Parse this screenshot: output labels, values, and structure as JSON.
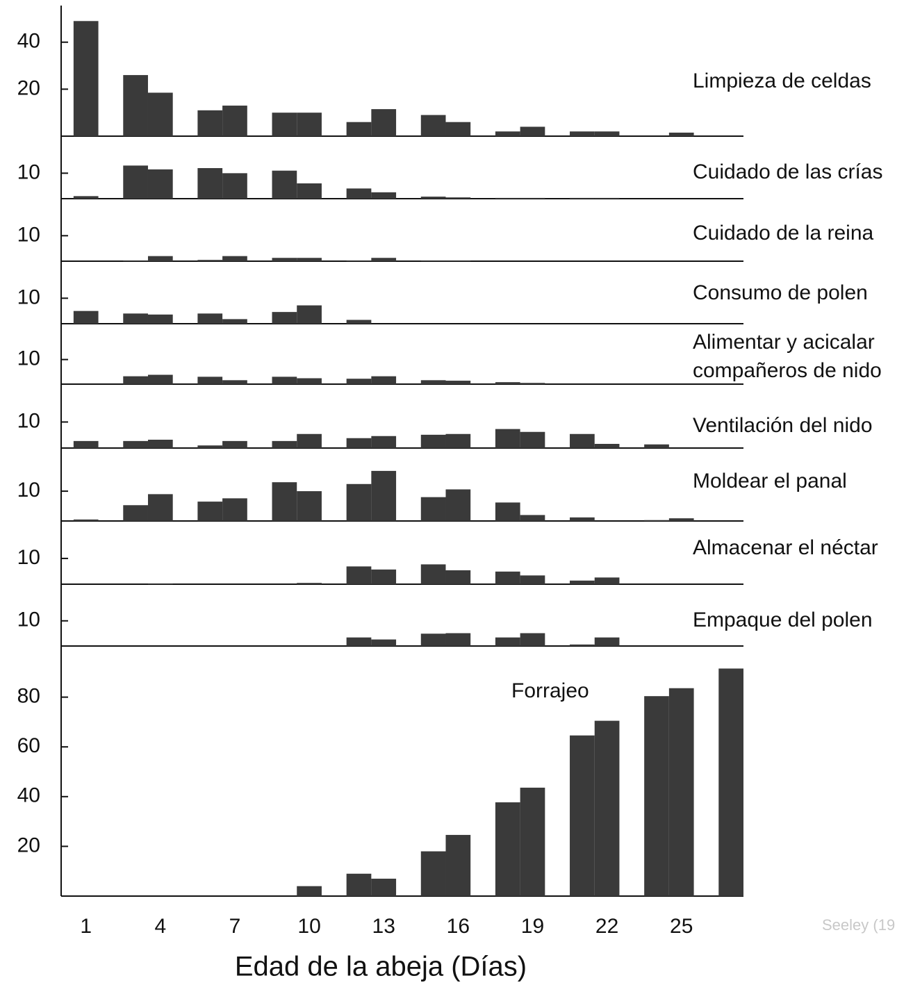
{
  "chart_data": [
    {
      "type": "bar",
      "title": "Limpieza de celdas",
      "x": [
        1,
        3,
        4,
        6,
        7,
        9,
        10,
        12,
        13,
        15,
        16,
        18,
        19,
        21,
        22,
        24,
        25,
        27
      ],
      "values": [
        49,
        26,
        18.5,
        11,
        13,
        10,
        10,
        6,
        11.5,
        9,
        6,
        2,
        4,
        2,
        2,
        0,
        1.5,
        0
      ],
      "ylim": [
        0,
        55
      ],
      "yticks": [
        20,
        40
      ],
      "color": "#3a3a3a"
    },
    {
      "type": "bar",
      "title": "Cuidado de las crías",
      "x": [
        1,
        3,
        4,
        6,
        7,
        9,
        10,
        12,
        13,
        15,
        16,
        18,
        19,
        21,
        22,
        24,
        25,
        27
      ],
      "values": [
        1,
        13,
        11.5,
        12,
        10,
        11,
        6,
        4,
        2.5,
        0.8,
        0.5,
        0.3,
        0.3,
        0.3,
        0.3,
        0,
        0,
        0
      ],
      "ylim": [
        0,
        24
      ],
      "yticks": [
        10
      ],
      "color": "#3a3a3a"
    },
    {
      "type": "bar",
      "title": "Cuidado de la reina",
      "x": [
        1,
        3,
        4,
        6,
        7,
        9,
        10,
        12,
        13,
        15,
        16,
        18,
        19,
        21,
        22,
        24,
        25,
        27
      ],
      "values": [
        0,
        0.3,
        2,
        0.5,
        2,
        1.3,
        1.3,
        0.3,
        1.3,
        0.3,
        0.3,
        0,
        0,
        0,
        0,
        0,
        0,
        0
      ],
      "ylim": [
        0,
        24
      ],
      "yticks": [
        10
      ],
      "color": "#3a3a3a"
    },
    {
      "type": "bar",
      "title": "Consumo de polen",
      "x": [
        1,
        3,
        4,
        6,
        7,
        9,
        10,
        12,
        13,
        15,
        16,
        18,
        19,
        21,
        22,
        24,
        25,
        27
      ],
      "values": [
        5,
        4,
        3.6,
        4,
        1.8,
        4.6,
        7.2,
        1.5,
        0,
        0,
        0,
        0,
        0,
        0,
        0,
        0,
        0,
        0
      ],
      "ylim": [
        0,
        24
      ],
      "yticks": [
        10
      ],
      "color": "#3a3a3a"
    },
    {
      "type": "bar",
      "title": [
        "Alimentar y acicalar",
        "compañeros de nido"
      ],
      "x": [
        1,
        3,
        4,
        6,
        7,
        9,
        10,
        12,
        13,
        15,
        16,
        18,
        19,
        21,
        22,
        24,
        25,
        27
      ],
      "values": [
        0,
        3.2,
        3.8,
        3,
        1.6,
        3,
        2.4,
        2.2,
        3.2,
        1.6,
        1.4,
        0.8,
        0.5,
        0,
        0,
        0,
        0,
        0
      ],
      "ylim": [
        0,
        24
      ],
      "yticks": [
        10
      ],
      "color": "#3a3a3a"
    },
    {
      "type": "bar",
      "title": "Ventilación del nido",
      "x": [
        1,
        3,
        4,
        6,
        7,
        9,
        10,
        12,
        13,
        15,
        16,
        18,
        19,
        21,
        22,
        24,
        25,
        27
      ],
      "values": [
        2.7,
        2.7,
        3.2,
        1,
        2.7,
        2.7,
        5.4,
        3.8,
        4.6,
        5.1,
        5.4,
        7.3,
        6.2,
        5.4,
        1.6,
        1.4,
        0,
        0
      ],
      "ylim": [
        0,
        24
      ],
      "yticks": [
        10
      ],
      "color": "#3a3a3a"
    },
    {
      "type": "bar",
      "title": "Moldear el panal",
      "x": [
        1,
        3,
        4,
        6,
        7,
        9,
        10,
        12,
        13,
        15,
        16,
        18,
        19,
        21,
        22,
        24,
        25,
        27
      ],
      "values": [
        0.5,
        5.3,
        9,
        6.5,
        7.6,
        13,
        10,
        12.4,
        16.8,
        8,
        10.6,
        6.2,
        2,
        1.2,
        0,
        0.3,
        0.9,
        0
      ],
      "ylim": [
        0,
        24
      ],
      "yticks": [
        10
      ],
      "color": "#3a3a3a"
    },
    {
      "type": "bar",
      "title": "Almacenar el néctar",
      "x": [
        1,
        3,
        4,
        6,
        7,
        9,
        10,
        12,
        13,
        15,
        16,
        18,
        19,
        21,
        22,
        24,
        25,
        27
      ],
      "values": [
        0,
        0,
        0.3,
        0,
        0,
        0,
        0.5,
        6.9,
        5.7,
        7.7,
        5.4,
        4.9,
        3.4,
        1.4,
        2.6,
        0,
        0,
        0
      ],
      "ylim": [
        0,
        24
      ],
      "yticks": [
        10
      ],
      "color": "#3a3a3a"
    },
    {
      "type": "bar",
      "title": "Empaque del polen",
      "x": [
        1,
        3,
        4,
        6,
        7,
        9,
        10,
        12,
        13,
        15,
        16,
        18,
        19,
        21,
        22,
        24,
        25,
        27
      ],
      "values": [
        0,
        0,
        0,
        0,
        0,
        0,
        0,
        3.4,
        2.6,
        4.9,
        5.1,
        3.4,
        5.1,
        0.6,
        3.4,
        0,
        0,
        0
      ],
      "ylim": [
        0,
        24
      ],
      "yticks": [
        10
      ],
      "color": "#3a3a3a"
    },
    {
      "type": "bar",
      "title": "Forrajeo",
      "x": [
        1,
        3,
        4,
        6,
        7,
        9,
        10,
        12,
        13,
        15,
        16,
        18,
        19,
        21,
        22,
        24,
        25,
        27
      ],
      "values": [
        0,
        0,
        0,
        0,
        0,
        0,
        4,
        9,
        7,
        18,
        24.6,
        37.7,
        43.6,
        64.6,
        70.5,
        80.4,
        83.6,
        91.5
      ],
      "ylim": [
        0,
        100
      ],
      "yticks": [
        20,
        40,
        60,
        80
      ],
      "color": "#3a3a3a",
      "xlim": [
        0,
        27.5
      ],
      "xticks": [
        1,
        4,
        7,
        10,
        13,
        16,
        19,
        22,
        25
      ],
      "xlabel": "Edad de la abeja (Días)"
    }
  ],
  "source": "Seeley (19"
}
